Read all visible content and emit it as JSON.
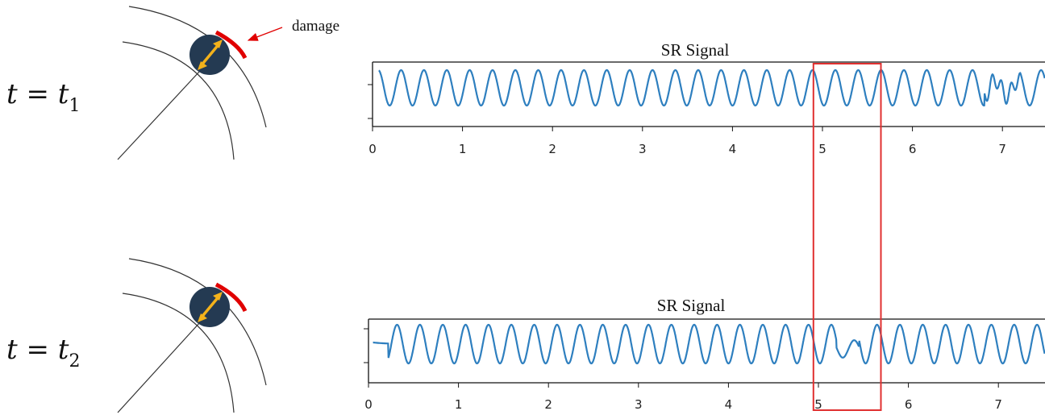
{
  "annotation": {
    "text": "damage"
  },
  "colors": {
    "signal": "#2e7fbf",
    "highlight": "#e03030",
    "damage": "#e00000",
    "ball": "#243a52",
    "arrow": "#f3b21b"
  },
  "panels": [
    {
      "equation": {
        "var": "t",
        "op": " = ",
        "sub_var": "t",
        "sub": "1"
      },
      "title": "SR Signal"
    },
    {
      "equation": {
        "var": "t",
        "op": " = ",
        "sub_var": "t",
        "sub": "2"
      },
      "title": "SR Signal"
    }
  ],
  "chart_data": [
    {
      "type": "line",
      "title": "SR Signal",
      "x_ticks": [
        "0",
        "1",
        "2",
        "3",
        "4",
        "5",
        "6",
        "7"
      ],
      "xlim": [
        0,
        7.4
      ],
      "series": [
        {
          "period": 0.254,
          "anomaly_x": [
            6.8,
            7.2
          ]
        }
      ]
    },
    {
      "type": "line",
      "title": "SR Signal",
      "x_ticks": [
        "0",
        "1",
        "2",
        "3",
        "4",
        "5",
        "6",
        "7"
      ],
      "xlim": [
        0,
        7.4
      ],
      "series": [
        {
          "period": 0.254,
          "anomaly_x": [
            5.2,
            5.45
          ]
        }
      ]
    }
  ],
  "highlight_region": {
    "x_start": 4.9,
    "x_end": 5.65
  }
}
